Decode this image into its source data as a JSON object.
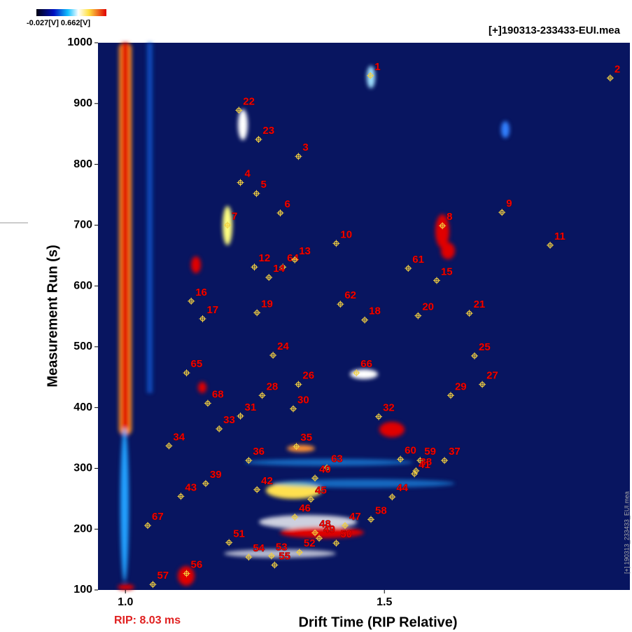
{
  "chart_data": {
    "type": "scatter",
    "title": "[+]190313-233433-EUI.mea",
    "side_label": "[+] 190313_233433_EUI.mea",
    "colorbar_label": "-0.027[V] 0.662[V]",
    "annotation": "RIP: 8.03 ms",
    "x_label": "Drift Time (RIP Relative)",
    "y_label": "Measurement Run (s)",
    "xlim": [
      0.947,
      1.974
    ],
    "ylim": [
      100,
      1000
    ],
    "xticks": [
      {
        "value": 1,
        "label": "1.0"
      },
      1.5
    ],
    "yticks": [
      100,
      200,
      300,
      400,
      500,
      600,
      700,
      800,
      900,
      1000
    ],
    "marker_color": "#f3d040",
    "points": [
      {
        "label": "1",
        "x": 1.473,
        "y": 946
      },
      {
        "label": "2",
        "x": 1.936,
        "y": 942
      },
      {
        "label": "22",
        "x": 1.219,
        "y": 889
      },
      {
        "label": "23",
        "x": 1.257,
        "y": 841
      },
      {
        "label": "3",
        "x": 1.334,
        "y": 813
      },
      {
        "label": "4",
        "x": 1.222,
        "y": 770
      },
      {
        "label": "5",
        "x": 1.253,
        "y": 752
      },
      {
        "label": "6",
        "x": 1.299,
        "y": 720
      },
      {
        "label": "7",
        "x": 1.197,
        "y": 700
      },
      {
        "label": "8",
        "x": 1.612,
        "y": 699
      },
      {
        "label": "9",
        "x": 1.727,
        "y": 721
      },
      {
        "label": "10",
        "x": 1.407,
        "y": 670
      },
      {
        "label": "11",
        "x": 1.82,
        "y": 667
      },
      {
        "label": "12",
        "x": 1.249,
        "y": 631
      },
      {
        "label": "64",
        "x": 1.304,
        "y": 631
      },
      {
        "label": "13",
        "x": 1.327,
        "y": 643
      },
      {
        "label": "14",
        "x": 1.277,
        "y": 614
      },
      {
        "label": "61",
        "x": 1.546,
        "y": 629
      },
      {
        "label": "15",
        "x": 1.601,
        "y": 609
      },
      {
        "label": "16",
        "x": 1.127,
        "y": 575
      },
      {
        "label": "17",
        "x": 1.149,
        "y": 546
      },
      {
        "label": "19",
        "x": 1.254,
        "y": 556
      },
      {
        "label": "62",
        "x": 1.415,
        "y": 570
      },
      {
        "label": "18",
        "x": 1.462,
        "y": 544
      },
      {
        "label": "20",
        "x": 1.565,
        "y": 551
      },
      {
        "label": "21",
        "x": 1.664,
        "y": 555
      },
      {
        "label": "24",
        "x": 1.285,
        "y": 486
      },
      {
        "label": "25",
        "x": 1.674,
        "y": 485
      },
      {
        "label": "65",
        "x": 1.118,
        "y": 457
      },
      {
        "label": "66",
        "x": 1.446,
        "y": 457
      },
      {
        "label": "26",
        "x": 1.334,
        "y": 438
      },
      {
        "label": "27",
        "x": 1.689,
        "y": 438
      },
      {
        "label": "28",
        "x": 1.264,
        "y": 420
      },
      {
        "label": "29",
        "x": 1.628,
        "y": 420
      },
      {
        "label": "68",
        "x": 1.159,
        "y": 407
      },
      {
        "label": "30",
        "x": 1.324,
        "y": 398
      },
      {
        "label": "31",
        "x": 1.222,
        "y": 386
      },
      {
        "label": "32",
        "x": 1.489,
        "y": 385
      },
      {
        "label": "33",
        "x": 1.181,
        "y": 365
      },
      {
        "label": "34",
        "x": 1.084,
        "y": 337
      },
      {
        "label": "35",
        "x": 1.33,
        "y": 336
      },
      {
        "label": "36",
        "x": 1.238,
        "y": 313
      },
      {
        "label": "60",
        "x": 1.531,
        "y": 315
      },
      {
        "label": "59",
        "x": 1.569,
        "y": 313
      },
      {
        "label": "37",
        "x": 1.616,
        "y": 313
      },
      {
        "label": "63",
        "x": 1.389,
        "y": 301
      },
      {
        "label": "38",
        "x": 1.561,
        "y": 296
      },
      {
        "label": "40",
        "x": 1.366,
        "y": 284
      },
      {
        "label": "39",
        "x": 1.155,
        "y": 275
      },
      {
        "label": "41",
        "x": 1.558,
        "y": 291
      },
      {
        "label": "42",
        "x": 1.254,
        "y": 265
      },
      {
        "label": "43",
        "x": 1.107,
        "y": 254
      },
      {
        "label": "44",
        "x": 1.515,
        "y": 253
      },
      {
        "label": "45",
        "x": 1.358,
        "y": 249
      },
      {
        "label": "46",
        "x": 1.327,
        "y": 220
      },
      {
        "label": "58",
        "x": 1.474,
        "y": 216
      },
      {
        "label": "67",
        "x": 1.043,
        "y": 206
      },
      {
        "label": "47",
        "x": 1.424,
        "y": 206
      },
      {
        "label": "48",
        "x": 1.366,
        "y": 194
      },
      {
        "label": "49",
        "x": 1.374,
        "y": 185
      },
      {
        "label": "50",
        "x": 1.407,
        "y": 177
      },
      {
        "label": "51",
        "x": 1.2,
        "y": 178
      },
      {
        "label": "52",
        "x": 1.336,
        "y": 162
      },
      {
        "label": "53",
        "x": 1.282,
        "y": 156
      },
      {
        "label": "54",
        "x": 1.238,
        "y": 154
      },
      {
        "label": "55",
        "x": 1.288,
        "y": 141
      },
      {
        "label": "56",
        "x": 1.118,
        "y": 127
      },
      {
        "label": "57",
        "x": 1.053,
        "y": 109
      }
    ]
  }
}
